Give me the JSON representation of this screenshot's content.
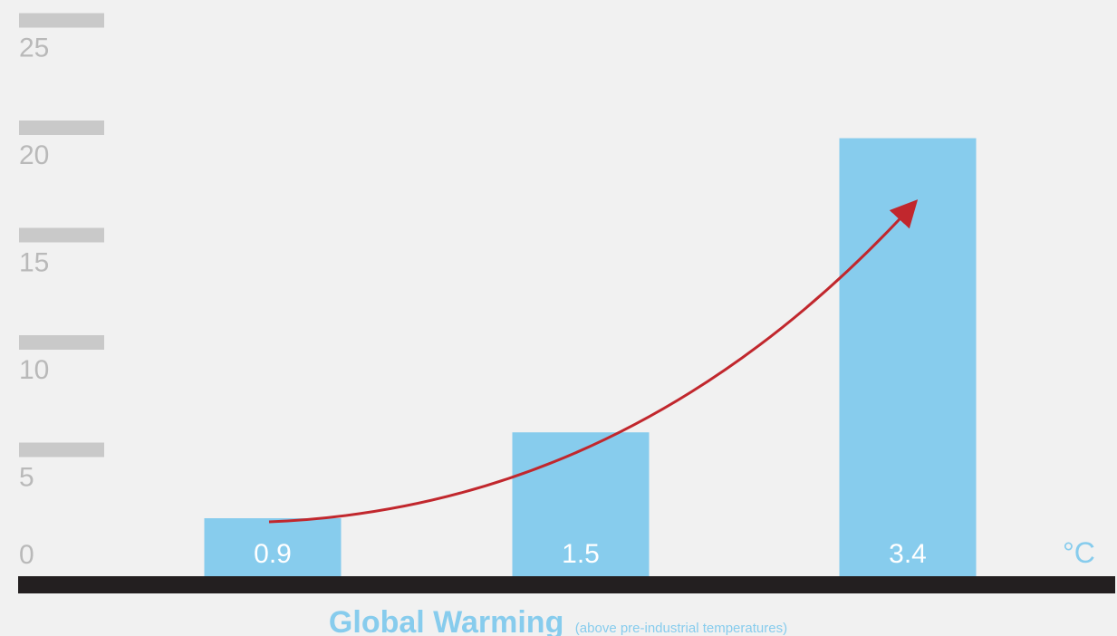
{
  "chart_data": {
    "type": "bar",
    "categories": [
      "0.9",
      "1.5",
      "3.4"
    ],
    "values": [
      2.7,
      6.7,
      20.4
    ],
    "xlabel": "Global Warming",
    "xlabel_note": "(above pre-industrial temperatures)",
    "unit": "°C",
    "ylim": [
      0,
      27
    ],
    "yticks": [
      "0",
      "5",
      "10",
      "15",
      "20",
      "25"
    ],
    "colors": {
      "bar": "#87cced",
      "axis": "#231f20",
      "tick_marker": "#c9c9c9",
      "tick_text": "#b9b9b9",
      "trend_arrow": "#c1272d",
      "background": "#f1f1f1"
    },
    "annotations": [
      "trend-arrow rising from first bar to third bar"
    ]
  }
}
